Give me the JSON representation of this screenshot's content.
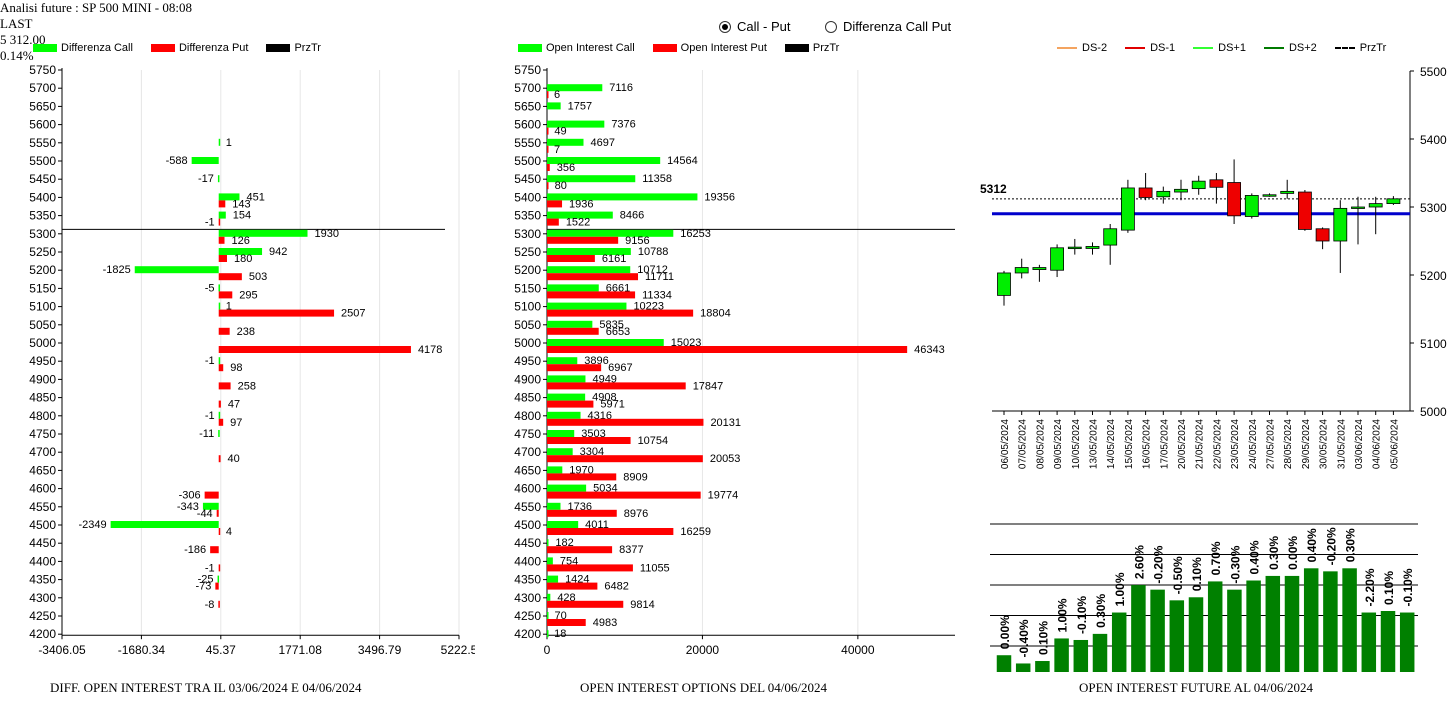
{
  "header": {
    "title": "Analisi future : SP 500 MINI - 08:08",
    "last_label": "LAST",
    "last_value": "5 312.00",
    "change": "0.14%"
  },
  "radio": {
    "opt1": "Call - Put",
    "opt2": "Differenza Call Put",
    "selected": "Call - Put"
  },
  "colors": {
    "call": "#00ff00",
    "put": "#ff0000",
    "future_bar": "#008000",
    "ref_line": "#0000cc"
  },
  "chart_data": [
    {
      "type": "bar",
      "orientation": "horizontal",
      "title": "DIFF. OPEN INTEREST TRA IL 03/06/2024 E 04/06/2024",
      "legend": [
        "Differenza Call",
        "Differenza Put",
        "PrzTr"
      ],
      "strikes": [
        5750,
        5700,
        5650,
        5600,
        5550,
        5500,
        5450,
        5400,
        5350,
        5300,
        5250,
        5200,
        5150,
        5100,
        5050,
        5000,
        4950,
        4900,
        4850,
        4800,
        4750,
        4700,
        4650,
        4600,
        4550,
        4500,
        4450,
        4400,
        4350,
        4300,
        4250,
        4200
      ],
      "series": [
        {
          "name": "Differenza Call",
          "values": [
            null,
            null,
            null,
            null,
            1,
            -588,
            -17,
            451,
            154,
            1930,
            942,
            -1825,
            -5,
            1,
            null,
            null,
            -1,
            null,
            null,
            -1,
            -11,
            null,
            null,
            null,
            -343,
            -2349,
            null,
            null,
            -25,
            null,
            null,
            null
          ]
        },
        {
          "name": "Differenza Put",
          "values": [
            null,
            null,
            null,
            null,
            null,
            null,
            null,
            143,
            -1,
            126,
            180,
            503,
            295,
            2507,
            238,
            4178,
            98,
            258,
            47,
            97,
            null,
            40,
            null,
            -306,
            -44,
            4,
            -186,
            -1,
            -73,
            -8,
            null,
            null
          ]
        }
      ],
      "price_level": 5312,
      "xticks": [
        "-3406.05",
        "-1680.34",
        "45.37",
        "1771.08",
        "3496.79",
        "5222.5"
      ],
      "xlim": [
        -3406.05,
        5222.5
      ]
    },
    {
      "type": "bar",
      "orientation": "horizontal",
      "title": "OPEN INTEREST OPTIONS DEL 04/06/2024",
      "legend": [
        "Open Interest Call",
        "Open Interest Put",
        "PrzTr"
      ],
      "strikes": [
        5750,
        5700,
        5650,
        5600,
        5550,
        5500,
        5450,
        5400,
        5350,
        5300,
        5250,
        5200,
        5150,
        5100,
        5050,
        5000,
        4950,
        4900,
        4850,
        4800,
        4750,
        4700,
        4650,
        4600,
        4550,
        4500,
        4450,
        4400,
        4350,
        4300,
        4250,
        4200
      ],
      "series": [
        {
          "name": "Open Interest Call",
          "values": [
            null,
            7116,
            1757,
            7376,
            4697,
            14564,
            11358,
            19356,
            8466,
            16253,
            10788,
            10712,
            6661,
            10223,
            5835,
            15023,
            3896,
            4949,
            4908,
            4316,
            3503,
            3304,
            1970,
            5034,
            1736,
            4011,
            182,
            754,
            1424,
            428,
            70,
            18
          ]
        },
        {
          "name": "Open Interest Put",
          "values": [
            null,
            6,
            null,
            49,
            7,
            356,
            80,
            1936,
            1522,
            9156,
            6161,
            11711,
            11334,
            18804,
            6653,
            46343,
            6967,
            17847,
            5971,
            20131,
            10754,
            20053,
            8909,
            19774,
            8976,
            16259,
            8377,
            11055,
            6482,
            9814,
            4983,
            null
          ]
        }
      ],
      "price_level": 5312,
      "xticks": [
        "0",
        "20000",
        "40000"
      ],
      "xlim": [
        0,
        52500
      ]
    },
    {
      "type": "candlestick",
      "legend": [
        "DS-2",
        "DS-1",
        "DS+1",
        "DS+2",
        "PrzTr"
      ],
      "dates": [
        "06/05/2024",
        "07/05/2024",
        "08/05/2024",
        "09/05/2024",
        "10/05/2024",
        "13/05/2024",
        "14/05/2024",
        "15/05/2024",
        "16/05/2024",
        "17/05/2024",
        "20/05/2024",
        "21/05/2024",
        "22/05/2024",
        "23/05/2024",
        "24/05/2024",
        "27/05/2024",
        "28/05/2024",
        "29/05/2024",
        "30/05/2024",
        "31/05/2024",
        "03/06/2024",
        "04/06/2024",
        "05/06/2024"
      ],
      "candles": [
        {
          "o": 5170,
          "h": 5206,
          "l": 5155,
          "c": 5203
        },
        {
          "o": 5203,
          "h": 5224,
          "l": 5195,
          "c": 5211
        },
        {
          "o": 5208,
          "h": 5215,
          "l": 5190,
          "c": 5211
        },
        {
          "o": 5207,
          "h": 5245,
          "l": 5197,
          "c": 5240
        },
        {
          "o": 5239,
          "h": 5253,
          "l": 5230,
          "c": 5241
        },
        {
          "o": 5239,
          "h": 5248,
          "l": 5230,
          "c": 5242
        },
        {
          "o": 5244,
          "h": 5275,
          "l": 5215,
          "c": 5268
        },
        {
          "o": 5266,
          "h": 5340,
          "l": 5262,
          "c": 5328
        },
        {
          "o": 5328,
          "h": 5350,
          "l": 5310,
          "c": 5314
        },
        {
          "o": 5315,
          "h": 5330,
          "l": 5305,
          "c": 5323
        },
        {
          "o": 5322,
          "h": 5340,
          "l": 5310,
          "c": 5326
        },
        {
          "o": 5327,
          "h": 5346,
          "l": 5318,
          "c": 5338
        },
        {
          "o": 5340,
          "h": 5350,
          "l": 5305,
          "c": 5329
        },
        {
          "o": 5336,
          "h": 5370,
          "l": 5275,
          "c": 5287
        },
        {
          "o": 5286,
          "h": 5320,
          "l": 5283,
          "c": 5317
        },
        {
          "o": 5318,
          "h": 5320,
          "l": 5315,
          "c": 5318
        },
        {
          "o": 5320,
          "h": 5340,
          "l": 5312,
          "c": 5323
        },
        {
          "o": 5322,
          "h": 5325,
          "l": 5265,
          "c": 5267
        },
        {
          "o": 5268,
          "h": 5270,
          "l": 5238,
          "c": 5250
        },
        {
          "o": 5250,
          "h": 5310,
          "l": 5203,
          "c": 5298
        },
        {
          "o": 5298,
          "h": 5315,
          "l": 5245,
          "c": 5300
        },
        {
          "o": 5300,
          "h": 5315,
          "l": 5260,
          "c": 5305
        },
        {
          "o": 5305,
          "h": 5316,
          "l": 5303,
          "c": 5312
        }
      ],
      "price_label": "5312",
      "ref_level": 5290,
      "yticks": [
        "5500",
        "5400",
        "5300",
        "5200",
        "5100",
        "5000"
      ],
      "ylim": [
        5000,
        5500
      ]
    },
    {
      "type": "bar",
      "title": "OPEN INTEREST FUTURE AL 04/06/2024",
      "bar_labels": [
        "0.00%",
        "-0.40%",
        "0.10%",
        "1.00%",
        "-0.10%",
        "0.30%",
        "1.00%",
        "2.60%",
        "-0.20%",
        "-0.50%",
        "0.10%",
        "0.70%",
        "-0.30%",
        "0.40%",
        "0.30%",
        "0.00%",
        "0.40%",
        "-0.20%",
        "0.30%",
        "-2.20%",
        "0.10%",
        "-0.10%"
      ],
      "values": [
        0.55,
        0.28,
        0.36,
        1.1,
        1.05,
        1.25,
        1.95,
        2.85,
        2.7,
        2.35,
        2.45,
        2.97,
        2.7,
        3.0,
        3.15,
        3.15,
        3.4,
        3.3,
        3.4,
        1.95,
        2.0,
        1.95
      ]
    }
  ]
}
